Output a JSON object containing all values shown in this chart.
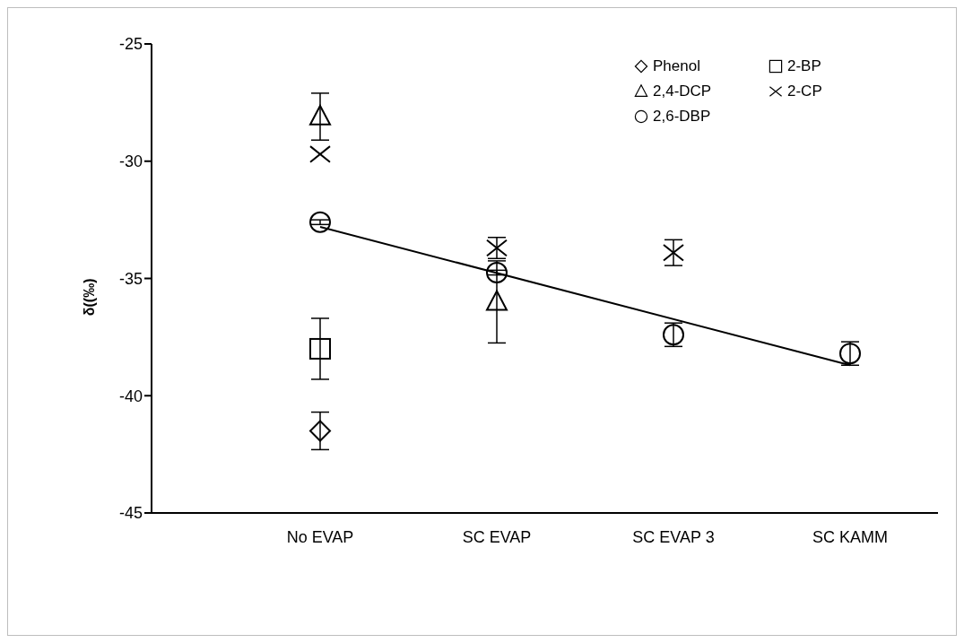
{
  "chart_data": {
    "type": "scatter",
    "ylabel": "δ((‰)",
    "categories": [
      "No EVAP",
      "SC EVAP",
      "SC EVAP 3",
      "SC KAMM"
    ],
    "ylim": [
      -45,
      -25
    ],
    "yticks": [
      -45,
      -40,
      -35,
      -30,
      -25
    ],
    "grid": false,
    "legend": "top right",
    "series": [
      {
        "name": "Phenol",
        "color": "#000000",
        "marker": "diamond",
        "values": [
          -41.5,
          null,
          null,
          null
        ],
        "errors": [
          0.8,
          null,
          null,
          null
        ]
      },
      {
        "name": "2-BP",
        "color": "#000000",
        "marker": "square",
        "values": [
          -38.0,
          null,
          null,
          null
        ],
        "errors": [
          1.3,
          null,
          null,
          null
        ]
      },
      {
        "name": "2,4-DCP",
        "color": "#000000",
        "marker": "triangle",
        "values": [
          -28.1,
          -36.0,
          null,
          null
        ],
        "errors": [
          1.0,
          1.75,
          null,
          null
        ]
      },
      {
        "name": "2-CP",
        "color": "#000000",
        "marker": "cross",
        "values": [
          -29.7,
          -33.7,
          -33.9,
          null
        ],
        "errors": [
          null,
          0.45,
          0.55,
          null
        ]
      },
      {
        "name": "2,6-DBP",
        "color": "#000000",
        "marker": "circle",
        "values": [
          -32.6,
          -34.75,
          -37.4,
          -38.2
        ],
        "errors": [
          0.1,
          0.1,
          0.5,
          0.5
        ]
      },
      {
        "type": "line",
        "color": "#000000",
        "marker": "none",
        "x": [
          "No EVAP",
          "SC KAMM"
        ],
        "values": [
          -32.8,
          -38.7
        ]
      }
    ]
  }
}
